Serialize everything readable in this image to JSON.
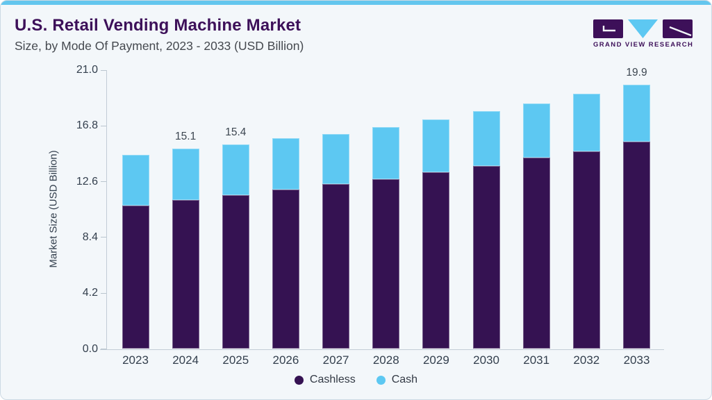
{
  "header": {
    "title": "U.S. Retail Vending Machine Market",
    "subtitle": "Size, by Mode Of Payment, 2023 - 2033 (USD Billion)"
  },
  "logo": {
    "text": "GRAND VIEW RESEARCH"
  },
  "colors": {
    "accent_top": "#63c6ee",
    "card_background": "#f3f7fa",
    "card_border": "#ccdae4",
    "title_text": "#3d1059",
    "subtitle_text": "#45494f",
    "axis_line": "#c2ccd6",
    "tick_text": "#333f4d",
    "cashless_purple": "#351252",
    "cash_blue": "#5dc8f2"
  },
  "chart_data": {
    "type": "bar",
    "stacked": true,
    "title": "U.S. Retail Vending Machine Market Size, by Mode Of Payment, 2023 - 2033 (USD Billion)",
    "categories": [
      "2023",
      "2024",
      "2025",
      "2026",
      "2027",
      "2028",
      "2029",
      "2030",
      "2031",
      "2032",
      "2033"
    ],
    "series": [
      {
        "name": "Cashless",
        "color": "#351252",
        "values": [
          10.8,
          11.2,
          11.6,
          12.0,
          12.4,
          12.8,
          13.3,
          13.8,
          14.4,
          14.9,
          15.6
        ]
      },
      {
        "name": "Cash",
        "color": "#5dc8f2",
        "values": [
          3.8,
          3.9,
          3.8,
          3.9,
          3.8,
          3.9,
          4.0,
          4.1,
          4.1,
          4.3,
          4.3
        ]
      }
    ],
    "totals": [
      14.6,
      15.1,
      15.4,
      15.9,
      16.2,
      16.7,
      17.3,
      17.9,
      18.5,
      19.2,
      19.9
    ],
    "bar_total_labels": [
      "",
      "15.1",
      "15.4",
      "",
      "",
      "",
      "",
      "",
      "",
      "",
      "19.9"
    ],
    "ylabel": "Market Size (USD Billion)",
    "yticks": [
      0,
      4.2,
      8.4,
      12.6,
      16.8,
      21
    ],
    "ytick_labels": [
      "0.0",
      "4.2",
      "8.4",
      "12.6",
      "16.8",
      "21.0"
    ],
    "ylim": [
      0,
      21
    ],
    "grid": false,
    "legend": {
      "position": "bottom",
      "items": [
        "Cashless",
        "Cash"
      ]
    }
  }
}
